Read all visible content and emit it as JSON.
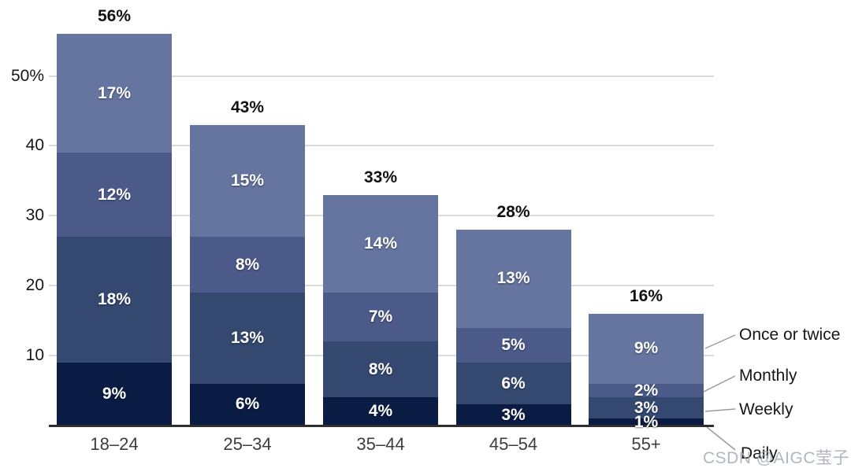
{
  "watermark": {
    "text": "CSDN @AIGC莹子",
    "color": "#b9bcc9"
  },
  "axes": {
    "y_ticks": [
      {
        "label": "50%",
        "value": 50
      },
      {
        "label": "40",
        "value": 40
      },
      {
        "label": "30",
        "value": 30
      },
      {
        "label": "20",
        "value": 20
      },
      {
        "label": "10",
        "value": 10
      }
    ],
    "x_labels": [
      "18–24",
      "25–34",
      "35–44",
      "45–54",
      "55+"
    ]
  },
  "legend": {
    "items": [
      {
        "label": "Once or twice"
      },
      {
        "label": "Monthly"
      },
      {
        "label": "Weekly"
      },
      {
        "label": "Daily"
      }
    ]
  },
  "chart_data": {
    "type": "bar",
    "stacked": true,
    "title": "",
    "xlabel": "",
    "ylabel": "",
    "grid": true,
    "legend_position": "right",
    "ylim": [
      0,
      56
    ],
    "categories": [
      "18–24",
      "25–34",
      "35–44",
      "45–54",
      "55+"
    ],
    "series": [
      {
        "name": "Daily",
        "color": "#0A1B44",
        "values": [
          9,
          6,
          4,
          3,
          1
        ]
      },
      {
        "name": "Weekly",
        "color": "#344870",
        "values": [
          18,
          13,
          8,
          6,
          3
        ]
      },
      {
        "name": "Monthly",
        "color": "#4C5A8A",
        "values": [
          12,
          8,
          7,
          5,
          2
        ]
      },
      {
        "name": "Once or twice",
        "color": "#66759F",
        "values": [
          17,
          15,
          14,
          13,
          9
        ]
      }
    ],
    "totals": {
      "values": [
        56,
        43,
        33,
        28,
        16
      ],
      "labels": [
        "56%",
        "43%",
        "33%",
        "28%",
        "16%"
      ]
    }
  }
}
